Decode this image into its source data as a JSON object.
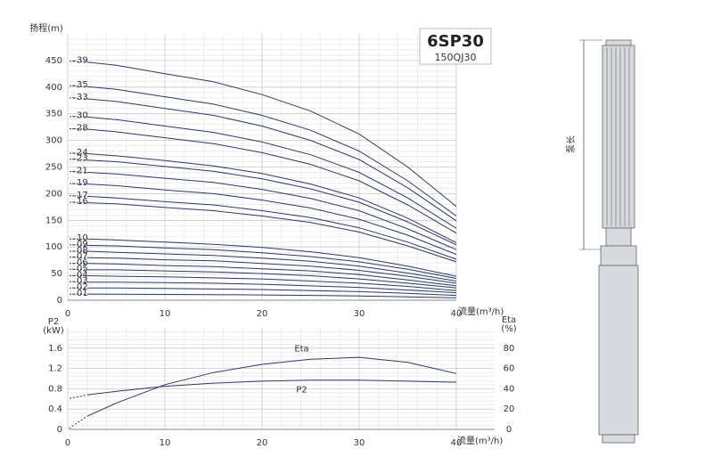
{
  "chart_data": [
    {
      "type": "line",
      "title": "6SP30",
      "subtitle": "150QJ30",
      "ylabel": "扬程(m)",
      "xlabel": "流量(m³/h)",
      "xlim": [
        0,
        40
      ],
      "xticks": [
        0,
        10,
        20,
        30,
        40
      ],
      "ylim": [
        0,
        500
      ],
      "yticks": [
        0,
        50,
        100,
        150,
        200,
        250,
        300,
        350,
        400,
        450
      ],
      "grid": true,
      "color": "#2b3a67",
      "x": [
        0,
        2,
        5,
        10,
        15,
        20,
        25,
        30,
        35,
        40
      ],
      "series": [
        {
          "name": "01",
          "values": [
            11.5,
            11.5,
            11.3,
            10.9,
            10.5,
            9.9,
            9.1,
            8,
            6.4,
            4.5
          ]
        },
        {
          "name": "02",
          "values": [
            23,
            23,
            23,
            22,
            21,
            20,
            18,
            16,
            13,
            9
          ]
        },
        {
          "name": "03",
          "values": [
            35,
            34,
            34,
            33,
            32,
            30,
            27,
            24,
            19,
            14
          ]
        },
        {
          "name": "04",
          "values": [
            46,
            46,
            45,
            44,
            42,
            40,
            36,
            32,
            26,
            18
          ]
        },
        {
          "name": "05",
          "values": [
            58,
            57,
            57,
            55,
            53,
            50,
            46,
            40,
            32,
            23
          ]
        },
        {
          "name": "06",
          "values": [
            69,
            69,
            68,
            65,
            63,
            59,
            55,
            48,
            38,
            27
          ]
        },
        {
          "name": "07",
          "values": [
            81,
            80,
            79,
            76,
            74,
            69,
            64,
            56,
            45,
            32
          ]
        },
        {
          "name": "08",
          "values": [
            92,
            92,
            90,
            87,
            84,
            79,
            73,
            64,
            51,
            36
          ]
        },
        {
          "name": "09",
          "values": [
            104,
            103,
            102,
            98,
            95,
            89,
            82,
            72,
            58,
            41
          ]
        },
        {
          "name": "10",
          "values": [
            115,
            115,
            113,
            109,
            105,
            99,
            91,
            80,
            64,
            45
          ]
        },
        {
          "name": "16",
          "values": [
            184,
            183,
            181,
            174,
            168,
            158,
            146,
            128,
            102,
            72
          ]
        },
        {
          "name": "17",
          "values": [
            196,
            195,
            192,
            185,
            179,
            168,
            155,
            136,
            109,
            77
          ]
        },
        {
          "name": "19",
          "values": [
            219,
            218,
            215,
            207,
            200,
            188,
            173,
            152,
            122,
            86
          ]
        },
        {
          "name": "21",
          "values": [
            242,
            240,
            237,
            229,
            221,
            208,
            191,
            168,
            134,
            95
          ]
        },
        {
          "name": "23",
          "values": [
            265,
            263,
            260,
            251,
            242,
            228,
            209,
            184,
            147,
            104
          ]
        },
        {
          "name": "24",
          "values": [
            276,
            275,
            271,
            262,
            252,
            238,
            218,
            192,
            154,
            108
          ]
        },
        {
          "name": "28",
          "values": [
            322,
            321,
            316,
            305,
            294,
            277,
            255,
            224,
            179,
            126
          ]
        },
        {
          "name": "30",
          "values": [
            345,
            344,
            339,
            327,
            315,
            297,
            273,
            240,
            192,
            135
          ]
        },
        {
          "name": "33",
          "values": [
            380,
            378,
            373,
            360,
            347,
            327,
            300,
            264,
            211,
            149
          ]
        },
        {
          "name": "35",
          "values": [
            403,
            401,
            396,
            382,
            368,
            347,
            319,
            280,
            224,
            158
          ]
        },
        {
          "name": "39",
          "values": [
            449,
            447,
            441,
            425,
            410,
            386,
            355,
            312,
            250,
            176
          ]
        }
      ]
    },
    {
      "type": "line",
      "ylabel": "P2",
      "yunit": "(kW)",
      "y2label": "Eta",
      "y2unit": "(%)",
      "xlabel": "流量(m³/h)",
      "xlim": [
        0,
        40
      ],
      "xticks": [
        0,
        10,
        20,
        30,
        40
      ],
      "ylim": [
        0,
        2
      ],
      "yticks": [
        0,
        0.4,
        0.8,
        1.2,
        1.6
      ],
      "y2lim": [
        0,
        100
      ],
      "y2ticks": [
        0,
        20,
        40,
        60,
        80
      ],
      "grid": true,
      "color": "#2b3a67",
      "x": [
        0,
        2,
        5,
        10,
        15,
        20,
        25,
        30,
        35,
        40
      ],
      "series": [
        {
          "name": "Eta",
          "axis": "y2",
          "values": [
            0,
            13,
            26,
            44,
            56,
            64,
            69,
            71,
            66,
            55
          ]
        },
        {
          "name": "P2",
          "values": [
            0.6,
            0.68,
            0.75,
            0.85,
            0.91,
            0.95,
            0.97,
            0.97,
            0.95,
            0.93
          ]
        }
      ]
    }
  ],
  "pump_label": "泵长"
}
